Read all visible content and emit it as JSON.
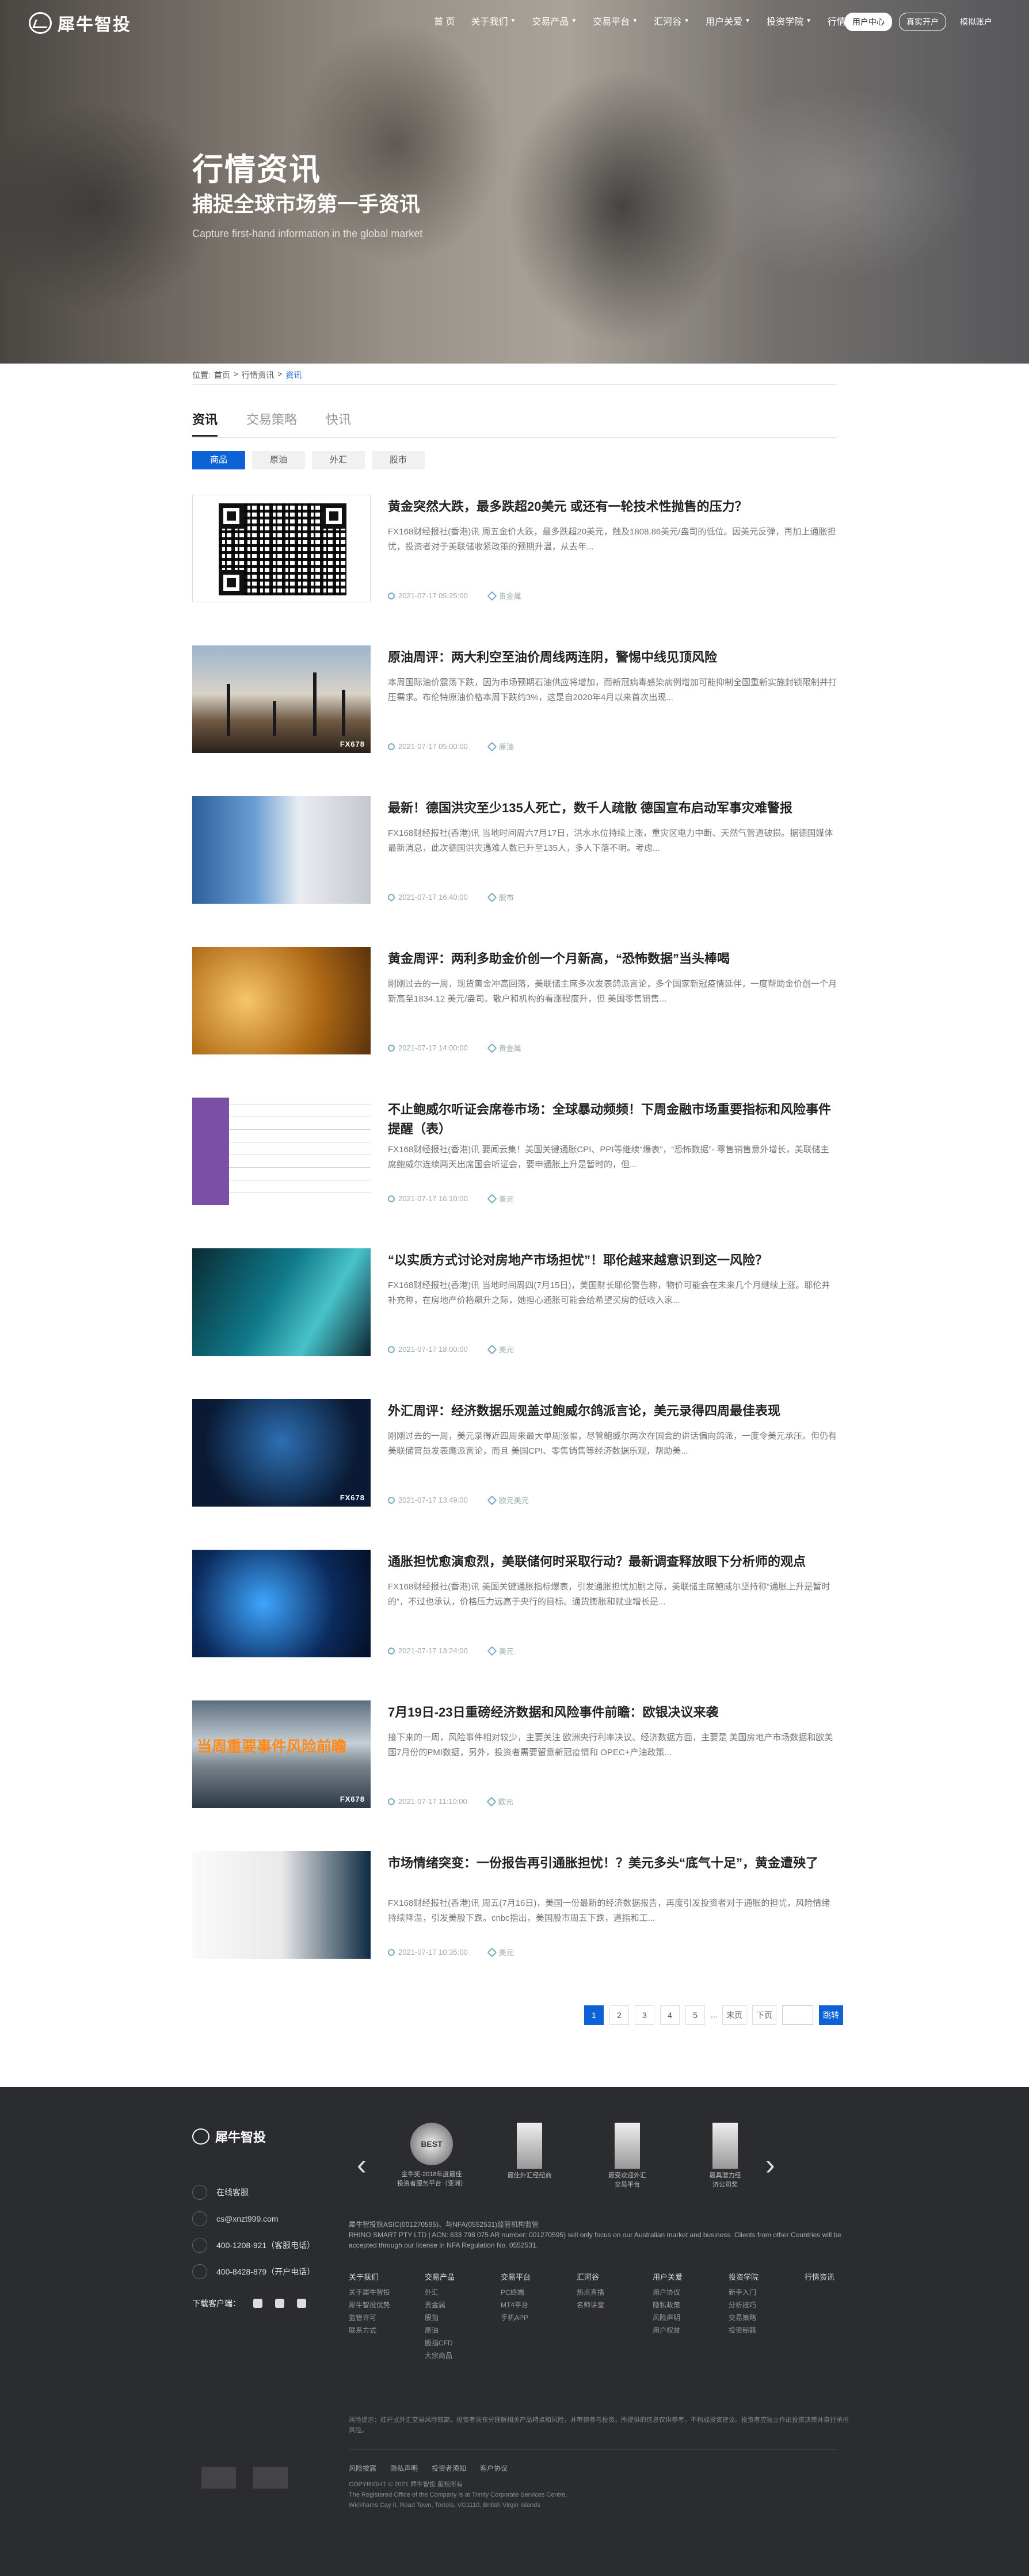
{
  "header": {
    "logo_text": "犀牛智投",
    "nav": [
      {
        "label": "首 页",
        "dropdown": false
      },
      {
        "label": "关于我们",
        "dropdown": true
      },
      {
        "label": "交易产品",
        "dropdown": true
      },
      {
        "label": "交易平台",
        "dropdown": true
      },
      {
        "label": "汇河谷",
        "dropdown": true
      },
      {
        "label": "用户关爱",
        "dropdown": true
      },
      {
        "label": "投资学院",
        "dropdown": true
      },
      {
        "label": "行情资讯",
        "dropdown": false
      }
    ],
    "buttons": {
      "user_center": "用户中心",
      "open_account": "真实开户",
      "demo_account": "模拟账户"
    }
  },
  "hero": {
    "title": "行情资讯",
    "subtitle": "捕捉全球市场第一手资讯",
    "english": "Capture first-hand information in the global market"
  },
  "breadcrumb": {
    "prefix": "位置:",
    "home": "首页",
    "sep1": ">",
    "level2": "行情资讯",
    "sep2": ">",
    "current": "资讯"
  },
  "tabs": [
    {
      "label": "资讯",
      "active": true
    },
    {
      "label": "交易策略",
      "active": false
    },
    {
      "label": "快讯",
      "active": false
    }
  ],
  "subtabs": [
    {
      "label": "商品",
      "active": true
    },
    {
      "label": "原油",
      "active": false
    },
    {
      "label": "外汇",
      "active": false
    },
    {
      "label": "股市",
      "active": false
    }
  ],
  "articles": [
    {
      "title": "黄金突然大跌，最多跌超20美元 或还有一轮技术性抛售的压力？",
      "summary": "FX168财经报社(香港)讯 周五金价大跌，最多跌超20美元，触及1808.86美元/盎司的低位。因美元反弹，再加上通胀担忧，投资者对于美联储收紧政策的预期升温，从去年...",
      "date": "2021-07-17 05:25:00",
      "tag": "贵金属",
      "thumb": "qr"
    },
    {
      "title": "原油周评：两大利空至油价周线两连阴，警惕中线见顶风险",
      "summary": "本周国际油价震荡下跌，因为市场预期石油供应将增加，而新冠病毒感染病例增加可能抑制全国重新实施封锁限制并打压需求。布伦特原油价格本周下跌约3%，这是自2020年4月以来首次出现...",
      "date": "2021-07-17 05:00:00",
      "tag": "原油",
      "thumb": "oil"
    },
    {
      "title": "最新！德国洪灾至少135人死亡，数千人疏散 德国宣布启动军事灾难警报",
      "summary": "FX168财经报社(香港)讯 当地时间周六7月17日，洪水水位持续上涨，重灾区电力中断、天然气管道破损。据德国媒体最新消息，此次德国洪灾遇难人数已升至135人，多人下落不明。考虑...",
      "date": "2021-07-17 16:40:00",
      "tag": "股市",
      "thumb": "flood"
    },
    {
      "title": "黄金周评：两利多助金价创一个月新高，“恐怖数据”当头棒喝",
      "summary": "刚刚过去的一周，现货黄金冲高回落，美联储主席多次发表鸽派言论，多个国家新冠疫情延伴，一度帮助金价创一个月新高至1834.12 美元/盎司。散户和机构的看涨程度升，但 美国零售销售...",
      "date": "2021-07-17 14:00:00",
      "tag": "贵金属",
      "thumb": "gold"
    },
    {
      "title": "不止鲍威尔听证会席卷市场：全球暴动频频！下周金融市场重要指标和风险事件提醒（表）",
      "summary": "FX168财经报社(香港)讯 要闻云集！美国关键通胀CPI、PPI等继续“爆表”，“恐怖数据”- 零售销售意外增长，美联储主席鲍威尔连续两天出席国会听证会，要申通胀上升是暂时的，但...",
      "date": "2021-07-17 16:10:00",
      "tag": "美元",
      "thumb": "table"
    },
    {
      "title": "“以实质方式讨论对房地产市场担忧”！耶伦越来越意识到这一风险？",
      "summary": "FX168财经报社(香港)讯 当地时间周四(7月15日)，美国财长耶伦警告称，物价可能会在未来几个月继续上涨。耶伦并补充称，在房地产价格飙升之际，她担心通胀可能会给希望买房的低收入家...",
      "date": "2021-07-17 18:00:00",
      "tag": "美元",
      "thumb": "teal"
    },
    {
      "title": "外汇周评：经济数据乐观盖过鲍威尔鸽派言论，美元录得四周最佳表现",
      "summary": "刚刚过去的一周，美元录得近四周来最大单周涨幅，尽管鲍威尔两次在国会的讲话偏向鸽派，一度令美元承压。但仍有 美联储官员发表鹰派言论，而且 美国CPI、零售销售等经济数据乐观，帮助美...",
      "date": "2021-07-17 13:49:00",
      "tag": "欧元美元",
      "thumb": "hand"
    },
    {
      "title": "通胀担忧愈演愈烈，美联储何时采取行动？最新调查释放眼下分析师的观点",
      "summary": "FX168财经报社(香港)讯 美国关键通胀指标爆表，引发通胀担忧加剧之际，美联储主席鲍威尔坚持称“通胀上升是暂时的”，不过也承认，价格压力远高于央行的目标。通货膨胀和就业增长是...",
      "date": "2021-07-17 13:24:00",
      "tag": "美元",
      "thumb": "blue"
    },
    {
      "title": "7月19日-23日重磅经济数据和风险事件前瞻：欧银决议来袭",
      "summary": "接下来的一周，风险事件相对较少，主要关注 欧洲央行利率决议、经济数据方面，主要是 美国房地产市场数据和欧美国7月份的PMI数据，另外，投资者需要留意新冠疫情和 OPEC+产油政策...",
      "date": "2021-07-17 11:10:00",
      "tag": "欧元",
      "thumb": "storm",
      "caption": "当周重要事件风险前瞻"
    },
    {
      "title": "市场情绪突变：一份报告再引通胀担忧！？美元多头“底气十足”，黄金遭殃了",
      "summary": "FX168财经报社(香港)讯 周五(7月16日)，美国一份最新的经济数据报告，再度引发投资者对于通胀的担忧，风险情绪持续降温，引发美股下跌。cnbc指出，美国股市周五下跌，道指和工...",
      "date": "2021-07-17 10:35:00",
      "tag": "美元",
      "thumb": "chart"
    }
  ],
  "thumb_watermark": "FX678",
  "pagination": {
    "pages": [
      "1",
      "2",
      "3",
      "4",
      "5"
    ],
    "current": "1",
    "dots": "...",
    "last": "末页",
    "next": "下页",
    "input_value": "",
    "go": "跳转"
  },
  "footer": {
    "logo_text": "犀牛智投",
    "contacts": [
      {
        "icon": "chat-icon",
        "text": "在线客服"
      },
      {
        "icon": "mail-icon",
        "text": "cs@xnzt999.com"
      },
      {
        "icon": "phone-icon",
        "text": "400-1208-921（客服电话）"
      },
      {
        "icon": "phone-icon",
        "text": "400-8428-879（开户电话）"
      }
    ],
    "download_label": "下载客户端：",
    "awards": [
      {
        "title": "BEST",
        "caption": "金牛奖-2018年度最佳\n投资者服务平台（亚洲）"
      },
      {
        "title": "",
        "caption": "最佳外汇经纪商"
      },
      {
        "title": "",
        "caption": "最受欢迎外汇\n交易平台"
      },
      {
        "title": "",
        "caption": "最具潜力经\n济公司奖"
      }
    ],
    "registration": "犀牛智投旗ASIC(001270595)、与NFA(0552531)监管机构监管\nRHINO SMART PTY LTD | ACN: 633 798 075 AR number: 001270595) sell only focus on our Australian market and business. Clients from other Countries will be accepted through our license in NFA Regulation No. 0552531.",
    "columns": [
      {
        "head": "关于我们",
        "items": [
          "关于犀牛智投",
          "犀牛智投优势",
          "监管许可",
          "联系方式"
        ]
      },
      {
        "head": "交易产品",
        "items": [
          "外汇",
          "贵金属",
          "股指",
          "原油",
          "股指CFD",
          "大宗商品"
        ]
      },
      {
        "head": "交易平台",
        "items": [
          "PC终端",
          "MT4平台",
          "手机APP"
        ]
      },
      {
        "head": "汇河谷",
        "items": [
          "热点直播",
          "名师讲堂"
        ]
      },
      {
        "head": "用户关爱",
        "items": [
          "用户协议",
          "隐私政策",
          "风险声明",
          "用户权益"
        ]
      },
      {
        "head": "投资学院",
        "items": [
          "新手入门",
          "分析技巧",
          "交易策略",
          "投资秘籍"
        ]
      },
      {
        "head": "行情资讯",
        "items": []
      }
    ],
    "disclaimer": "风险提示：杠杆式外汇交易风险较高，投资者须充分理解相关产品特点和风险，并审慎参与投资。所提供的信息仅供参考，不构成投资建议。投资者应独立作出投资决策并自行承担风险。",
    "links": [
      "风险披露",
      "隐私声明",
      "投资者须知",
      "客户协议"
    ],
    "copyright": "COPYRIGHT © 2021 犀牛智投 版权所有\nThe Registered Office of the Company is at Trinity Corporate Services Centre,\nWickhams Cay II, Road Town, Tortola, VG1110, British Virgin Islands"
  }
}
